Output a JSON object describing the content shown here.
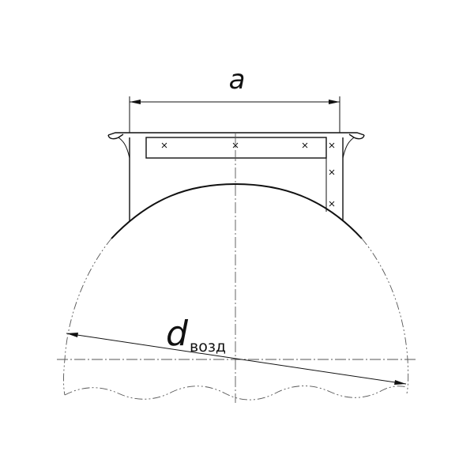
{
  "dimensions": {
    "width_label": "a",
    "diameter_label": "d",
    "diameter_subscript": "возд"
  },
  "colors": {
    "line": "#111111",
    "centerline": "#555555",
    "background": "#ffffff"
  }
}
